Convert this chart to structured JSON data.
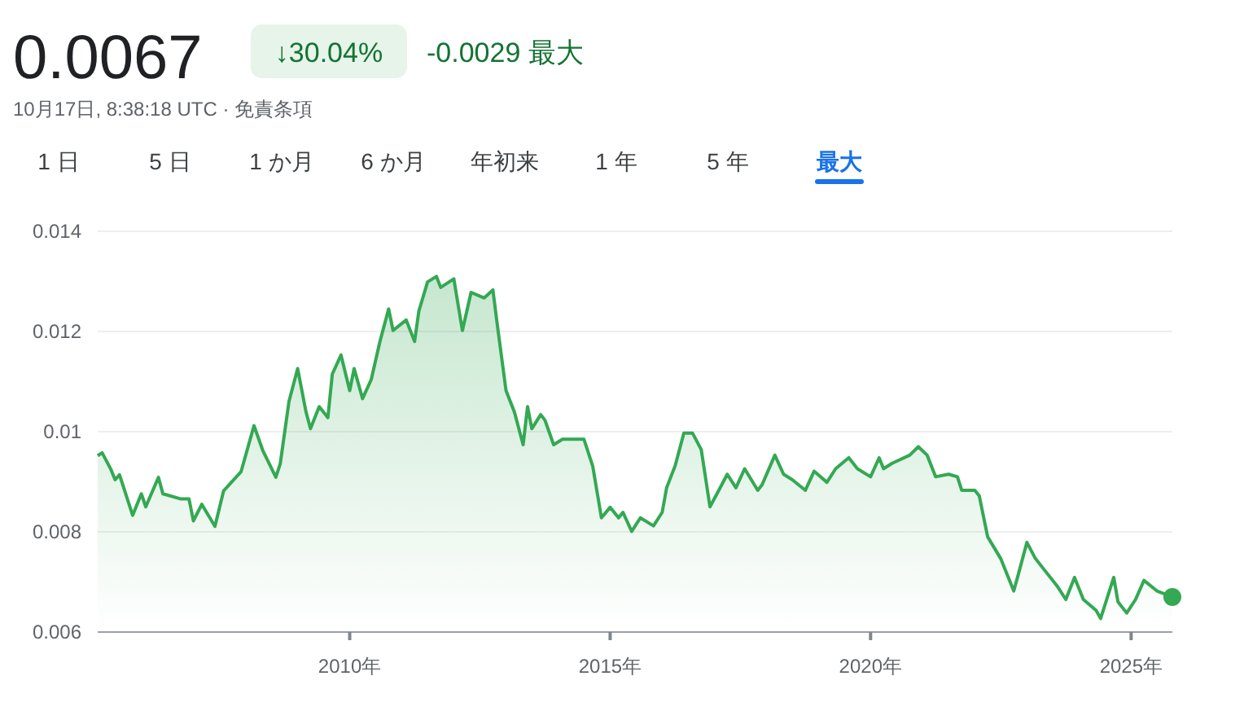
{
  "chart_data": {
    "type": "area",
    "title": "0.0067",
    "subtitle": "10月17日, 8:38:18 UTC · 免責条項",
    "annotations": [
      "↓30.04%",
      "-0.0029 最大",
      "1 日",
      "5 日",
      "1 か月",
      "6 か月",
      "年初来",
      "1 年",
      "5 年",
      "最大"
    ],
    "x": [
      "2005-03",
      "2005-04",
      "2005-06",
      "2005-07",
      "2005-08",
      "2005-11",
      "2006-01",
      "2006-02",
      "2006-05",
      "2006-06",
      "2006-10",
      "2006-12",
      "2007-01",
      "2007-03",
      "2007-06",
      "2007-08",
      "2007-12",
      "2008-03",
      "2008-05",
      "2008-08",
      "2008-09",
      "2008-11",
      "2009-01",
      "2009-03",
      "2009-04",
      "2009-06",
      "2009-08",
      "2009-09",
      "2009-11",
      "2010-01",
      "2010-02",
      "2010-04",
      "2010-06",
      "2010-08",
      "2010-10",
      "2010-11",
      "2011-02",
      "2011-04",
      "2011-05",
      "2011-07",
      "2011-09",
      "2011-10",
      "2012-01",
      "2012-03",
      "2012-05",
      "2012-08",
      "2012-10",
      "2012-11",
      "2013-01",
      "2013-03",
      "2013-05",
      "2013-06",
      "2013-07",
      "2013-09",
      "2013-10",
      "2013-12",
      "2014-02",
      "2014-04",
      "2014-07",
      "2014-09",
      "2014-11",
      "2015-01",
      "2015-03",
      "2015-04",
      "2015-06",
      "2015-08",
      "2015-11",
      "2016-01",
      "2016-02",
      "2016-04",
      "2016-06",
      "2016-08",
      "2016-10",
      "2016-12",
      "2017-02",
      "2017-04",
      "2017-06",
      "2017-08",
      "2017-11",
      "2017-12",
      "2018-03",
      "2018-05",
      "2018-07",
      "2018-10",
      "2018-12",
      "2019-03",
      "2019-05",
      "2019-08",
      "2019-10",
      "2020-01",
      "2020-03",
      "2020-04",
      "2020-06",
      "2020-10",
      "2020-12",
      "2021-02",
      "2021-04",
      "2021-07",
      "2021-09",
      "2021-10",
      "2022-01",
      "2022-02",
      "2022-04",
      "2022-07",
      "2022-10",
      "2022-11",
      "2023-01",
      "2023-03",
      "2023-05",
      "2023-08",
      "2023-10",
      "2023-12",
      "2024-02",
      "2024-05",
      "2024-06",
      "2024-09",
      "2024-10",
      "2024-12",
      "2025-02",
      "2025-04",
      "2025-07",
      "2025-10-17"
    ],
    "series": [
      {
        "color": "#34a853",
        "values": [
          0.00952,
          0.00958,
          0.00925,
          0.00904,
          0.00914,
          0.00833,
          0.00876,
          0.0085,
          0.00909,
          0.00876,
          0.00866,
          0.00866,
          0.00822,
          0.00855,
          0.00811,
          0.00882,
          0.0092,
          0.01012,
          0.00963,
          0.00909,
          0.00936,
          0.0106,
          0.01126,
          0.01039,
          0.01006,
          0.0105,
          0.01028,
          0.01115,
          0.01153,
          0.01082,
          0.01126,
          0.01066,
          0.01104,
          0.0118,
          0.01245,
          0.01202,
          0.01223,
          0.0118,
          0.01241,
          0.01299,
          0.0131,
          0.01288,
          0.01305,
          0.01202,
          0.01278,
          0.01267,
          0.01283,
          0.01213,
          0.01082,
          0.01039,
          0.00974,
          0.0105,
          0.01006,
          0.01034,
          0.01023,
          0.00974,
          0.00985,
          0.00985,
          0.00985,
          0.00931,
          0.00828,
          0.00849,
          0.00828,
          0.00839,
          0.00801,
          0.00828,
          0.00812,
          0.00839,
          0.00888,
          0.00932,
          0.00997,
          0.00997,
          0.00964,
          0.0085,
          0.00883,
          0.00915,
          0.00888,
          0.00926,
          0.00883,
          0.00894,
          0.00953,
          0.00915,
          0.00904,
          0.00883,
          0.00921,
          0.00899,
          0.00926,
          0.00948,
          0.00926,
          0.0091,
          0.00948,
          0.00926,
          0.00937,
          0.00953,
          0.0097,
          0.00953,
          0.0091,
          0.00915,
          0.0091,
          0.00883,
          0.00883,
          0.00872,
          0.0079,
          0.00747,
          0.00682,
          0.00714,
          0.00779,
          0.00747,
          0.00725,
          0.00692,
          0.00665,
          0.00709,
          0.00665,
          0.00643,
          0.00627,
          0.00709,
          0.0066,
          0.00638,
          0.00665,
          0.00703,
          0.00682,
          0.0067
        ]
      }
    ],
    "xlim": [
      "2005-03",
      "2025-10-17"
    ],
    "xticks": [
      {
        "value": "2010",
        "label": "2010年"
      },
      {
        "value": "2015",
        "label": "2015年"
      },
      {
        "value": "2020",
        "label": "2020年"
      },
      {
        "value": "2025",
        "label": "2025年"
      }
    ],
    "ylim": [
      0.006,
      0.014
    ],
    "yticks": [
      0.006,
      0.008,
      0.01,
      0.012,
      0.014
    ],
    "grid": "y",
    "marker": "none",
    "line_style": "solid"
  }
}
